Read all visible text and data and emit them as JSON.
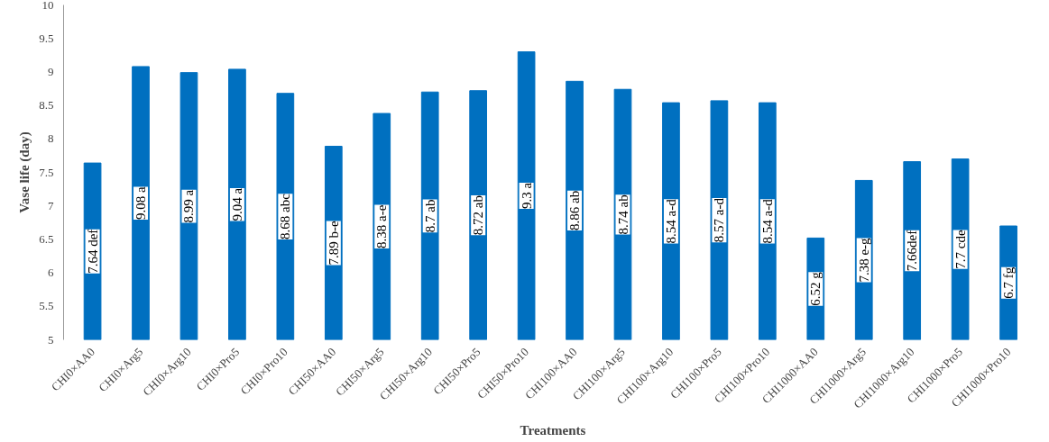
{
  "chart_data": {
    "type": "bar",
    "xlabel": "Treatments",
    "ylabel": "Vase life (day)",
    "categories": [
      "CHI0×AA0",
      "CHI0×Arg5",
      "CHI0×Arg10",
      "CHI0×Pro5",
      "CHI0×Pro10",
      "CHI50×AA0",
      "CHI50×Arg5",
      "CHI50×Arg10",
      "CHI50×Pro5",
      "CHI50×Pro10",
      "CHI100×AA0",
      "CHI100×Arg5",
      "CHI100×Arg10",
      "CHI100×Pro5",
      "CHI100×Pro10",
      "CHI1000×AA0",
      "CHI1000×Arg5",
      "CHI1000×Arg10",
      "CHI1000×Pro5",
      "CHI1000×Pro10"
    ],
    "values": [
      7.64,
      9.08,
      8.99,
      9.04,
      8.68,
      7.89,
      8.38,
      8.7,
      8.72,
      9.3,
      8.86,
      8.74,
      8.54,
      8.57,
      8.54,
      6.52,
      7.38,
      7.66,
      7.7,
      6.7
    ],
    "value_labels": [
      "7.64 def",
      "9.08 a",
      "8.99 a",
      "9.04 a",
      "8.68 abc",
      "7.89 b-e",
      "8.38 a-e",
      "8.7 ab",
      "8.72 ab",
      "9.3 a",
      "8.86 ab",
      "8.74 ab",
      "8.54 a-d",
      "8.57 a-d",
      "8.54 a-d",
      "6.52 g",
      "7.38 e-g",
      "7.66def",
      "7.7 cde",
      "6.7 fg"
    ],
    "color": "#0070c0",
    "ylim": [
      5,
      10
    ],
    "yticks": [
      5,
      5.5,
      6,
      6.5,
      7,
      7.5,
      8,
      8.5,
      9,
      9.5,
      10
    ],
    "grid": false
  }
}
